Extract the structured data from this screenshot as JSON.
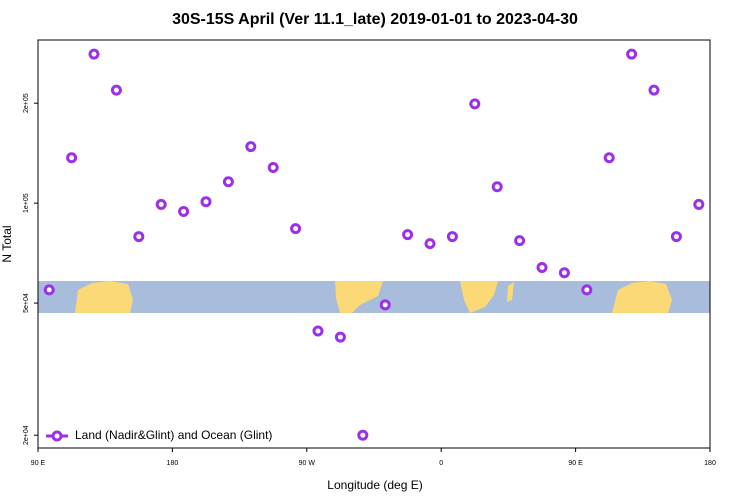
{
  "chart_data": {
    "type": "scatter",
    "title": "30S-15S April (Ver 11.1_late)   2019-01-01 to 2023-04-30",
    "x_label": "Longitude (deg E)",
    "y_label": "N Total",
    "log_y": true,
    "legend_position": "bottom-left",
    "series": [
      {
        "name": "Land (Nadir&Glint) and Ocean (Glint)",
        "color": "#9b30e8",
        "x": [
          97.5,
          112.5,
          127.5,
          142.5,
          157.5,
          172.5,
          187.5,
          202.5,
          217.5,
          232.5,
          247.5,
          262.5,
          277.5,
          292.5,
          307.5,
          322.5,
          337.5,
          352.5,
          367.5,
          382.5,
          397.5,
          412.5,
          427.5,
          442.5,
          457.5,
          472.5,
          487.5,
          502.5,
          517.5,
          532.5
        ],
        "values": [
          54800,
          137000,
          281000,
          219000,
          79300,
          99100,
          94400,
          101000,
          116000,
          148000,
          128000,
          83800,
          41200,
          39500,
          20000,
          49400,
          80400,
          75500,
          79300,
          199000,
          112000,
          77100,
          64000,
          61700,
          54800,
          137000,
          281000,
          219000,
          79300,
          99100
        ]
      }
    ],
    "xlim": [
      90,
      540
    ],
    "xticks": [
      {
        "value": 90,
        "label": "90 E"
      },
      {
        "value": 180,
        "label": "180"
      },
      {
        "value": 270,
        "label": "90 W"
      },
      {
        "value": 360,
        "label": "0"
      },
      {
        "value": 450,
        "label": "90 E"
      },
      {
        "value": 540,
        "label": "180"
      }
    ],
    "ylim": [
      18300,
      310000
    ],
    "yticks": [
      {
        "value": 20000,
        "label": "2e+04"
      },
      {
        "value": 50000,
        "label": "5e+04"
      },
      {
        "value": 100000,
        "label": "1e+05"
      },
      {
        "value": 200000,
        "label": "2e+05"
      }
    ]
  }
}
